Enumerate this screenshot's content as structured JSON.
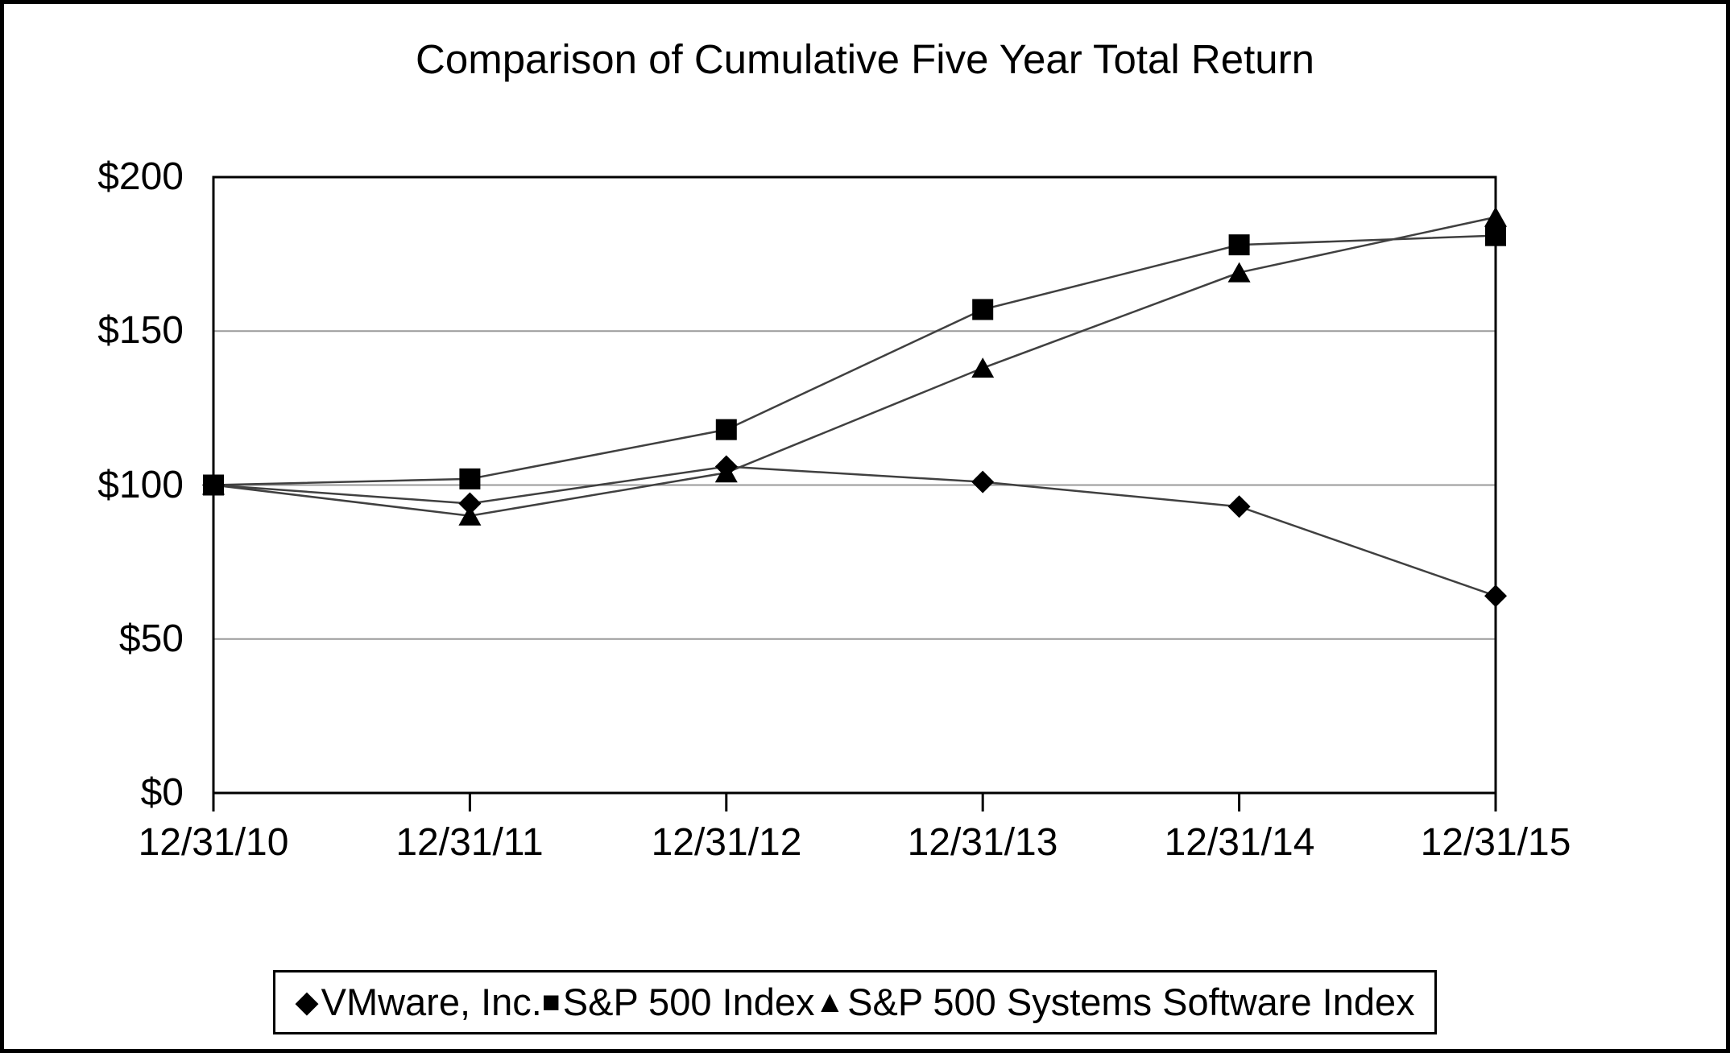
{
  "title": "Comparison of Cumulative Five Year Total Return",
  "chart_data": {
    "type": "line",
    "title": "Comparison of Cumulative Five Year Total Return",
    "x_labels": [
      "12/31/10",
      "12/31/11",
      "12/31/12",
      "12/31/13",
      "12/31/14",
      "12/31/15"
    ],
    "y_ticks": [
      {
        "label": "$200",
        "value": 200
      },
      {
        "label": "$150",
        "value": 150
      },
      {
        "label": "$100",
        "value": 100
      },
      {
        "label": "$50",
        "value": 50
      },
      {
        "label": "$0",
        "value": 0
      }
    ],
    "ylim": [
      0,
      200
    ],
    "gridline_values": [
      150,
      100,
      50
    ],
    "grid_on": true,
    "legend_position": "bottom",
    "series": [
      {
        "name": "VMware, Inc.",
        "marker": "diamond",
        "values": [
          100,
          94,
          106,
          101,
          93,
          64
        ]
      },
      {
        "name": "S&P 500 Index",
        "marker": "square",
        "values": [
          100,
          102,
          118,
          157,
          178,
          181
        ]
      },
      {
        "name": "S&P 500 Systems Software Index",
        "marker": "triangle",
        "values": [
          100,
          90,
          104,
          138,
          169,
          187
        ]
      }
    ],
    "colors": {
      "line": "#404040",
      "marker": "#000000",
      "grid": "#9a9a9a",
      "axis": "#000000"
    }
  },
  "legend": {
    "items": [
      {
        "marker": "◆",
        "label": "VMware, Inc."
      },
      {
        "marker": "■",
        "label": "S&P 500 Index"
      },
      {
        "marker": "▲",
        "label": "S&P 500 Systems Software Index"
      }
    ]
  }
}
